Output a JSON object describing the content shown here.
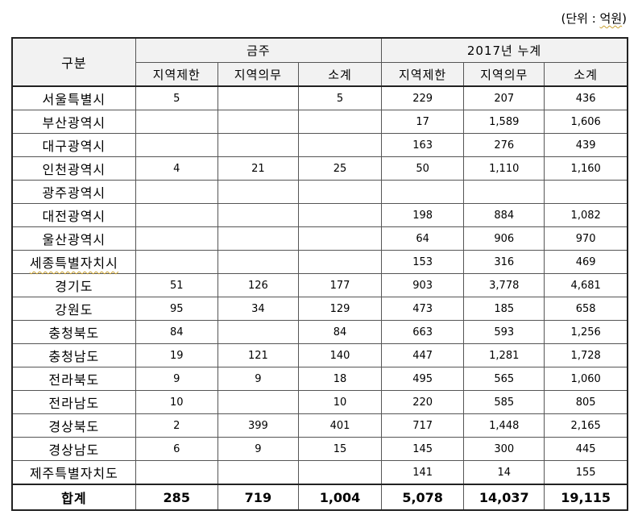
{
  "unit_label": "(단위 : ",
  "unit_word": "억원",
  "unit_close": ")",
  "header": {
    "gubun": "구분",
    "group1": "금주",
    "group2": "2017년 누계",
    "sub": [
      "지역제한",
      "지역의무",
      "소계",
      "지역제한",
      "지역의무",
      "소계"
    ]
  },
  "rows": [
    {
      "name": "서울특별시",
      "v": [
        "5",
        "",
        "5",
        "229",
        "207",
        "436"
      ]
    },
    {
      "name": "부산광역시",
      "v": [
        "",
        "",
        "",
        "17",
        "1,589",
        "1,606"
      ]
    },
    {
      "name": "대구광역시",
      "v": [
        "",
        "",
        "",
        "163",
        "276",
        "439"
      ]
    },
    {
      "name": "인천광역시",
      "v": [
        "4",
        "21",
        "25",
        "50",
        "1,110",
        "1,160"
      ]
    },
    {
      "name": "광주광역시",
      "v": [
        "",
        "",
        "",
        "",
        "",
        ""
      ]
    },
    {
      "name": "대전광역시",
      "v": [
        "",
        "",
        "",
        "198",
        "884",
        "1,082"
      ]
    },
    {
      "name": "울산광역시",
      "v": [
        "",
        "",
        "",
        "64",
        "906",
        "970"
      ]
    },
    {
      "name": "세종특별자치시",
      "v": [
        "",
        "",
        "",
        "153",
        "316",
        "469"
      ]
    },
    {
      "name": "경기도",
      "v": [
        "51",
        "126",
        "177",
        "903",
        "3,778",
        "4,681"
      ]
    },
    {
      "name": "강원도",
      "v": [
        "95",
        "34",
        "129",
        "473",
        "185",
        "658"
      ]
    },
    {
      "name": "충청북도",
      "v": [
        "84",
        "",
        "84",
        "663",
        "593",
        "1,256"
      ]
    },
    {
      "name": "충청남도",
      "v": [
        "19",
        "121",
        "140",
        "447",
        "1,281",
        "1,728"
      ]
    },
    {
      "name": "전라북도",
      "v": [
        "9",
        "9",
        "18",
        "495",
        "565",
        "1,060"
      ]
    },
    {
      "name": "전라남도",
      "v": [
        "10",
        "",
        "10",
        "220",
        "585",
        "805"
      ]
    },
    {
      "name": "경상북도",
      "v": [
        "2",
        "399",
        "401",
        "717",
        "1,448",
        "2,165"
      ]
    },
    {
      "name": "경상남도",
      "v": [
        "6",
        "9",
        "15",
        "145",
        "300",
        "445"
      ]
    },
    {
      "name": "제주특별자치도",
      "v": [
        "",
        "",
        "",
        "141",
        "14",
        "155"
      ]
    }
  ],
  "total": {
    "name": "합계",
    "v": [
      "285",
      "719",
      "1,004",
      "5,078",
      "14,037",
      "19,115"
    ]
  }
}
